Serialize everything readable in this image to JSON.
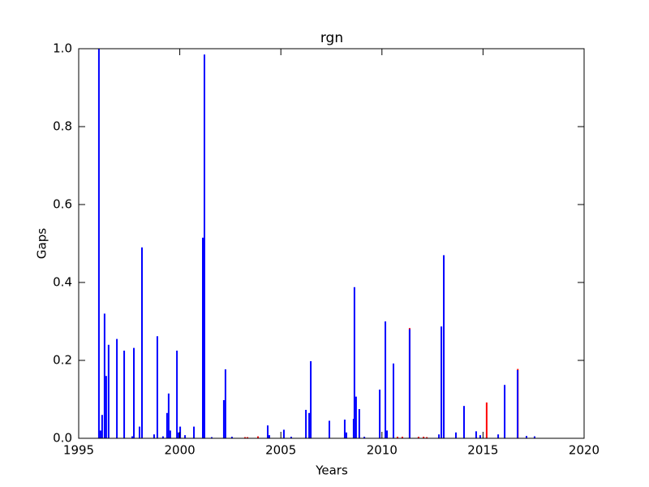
{
  "chart_data": {
    "type": "bar",
    "title": "rgn",
    "x_label": "Years",
    "y_label": "Gaps",
    "xlim": [
      1995,
      2020
    ],
    "xticks": [
      1995,
      2000,
      2005,
      2010,
      2015,
      2020
    ],
    "ylim": [
      0,
      1
    ],
    "yticks": [
      {
        "value": 0,
        "label": "0.0"
      },
      {
        "value": 0.2,
        "label": "0.2"
      },
      {
        "value": 0.4,
        "label": "0.4"
      },
      {
        "value": 0.6,
        "label": "0.6"
      },
      {
        "value": 0.8,
        "label": "0.8"
      },
      {
        "value": 1,
        "label": "1.0"
      }
    ],
    "series": [
      {
        "color": "#ff0000",
        "x": [
          2003.23,
          2003.35,
          2003.87,
          2010.77,
          2011.01,
          2011.37,
          2011.81,
          2012.06,
          2012.22,
          2015.18,
          2016.72
        ],
        "values": [
          0.003,
          0.003,
          0.005,
          0.004,
          0.004,
          0.283,
          0.004,
          0.004,
          0.003,
          0.092,
          0.178
        ]
      },
      {
        "color": "#0000ff",
        "x": [
          1996.0,
          1996.08,
          1996.16,
          1996.28,
          1996.36,
          1996.48,
          1996.89,
          1997.25,
          1997.65,
          1997.73,
          1998.01,
          1998.13,
          1998.73,
          1998.89,
          1999.17,
          1999.37,
          1999.45,
          1999.53,
          1999.86,
          1999.94,
          2000.02,
          2000.26,
          2000.7,
          2001.14,
          2001.22,
          2001.58,
          2002.18,
          2002.26,
          2002.58,
          2004.35,
          2004.43,
          2005.15,
          2005.51,
          2006.24,
          2006.4,
          2006.48,
          2007.4,
          2008.16,
          2008.24,
          2008.6,
          2008.64,
          2008.72,
          2008.88,
          2009.13,
          2009.89,
          2010.17,
          2010.25,
          2010.57,
          2011.37,
          2012.82,
          2012.94,
          2013.06,
          2013.66,
          2014.06,
          2014.66,
          2014.86,
          2015.75,
          2016.07,
          2016.71,
          2017.15,
          2017.55
        ],
        "values": [
          1.0,
          0.02,
          0.06,
          0.32,
          0.16,
          0.24,
          0.255,
          0.225,
          0.005,
          0.232,
          0.03,
          0.49,
          0.01,
          0.262,
          0.005,
          0.065,
          0.115,
          0.02,
          0.225,
          0.015,
          0.03,
          0.008,
          0.03,
          0.515,
          0.985,
          0.003,
          0.098,
          0.177,
          0.004,
          0.033,
          0.008,
          0.022,
          0.004,
          0.073,
          0.065,
          0.198,
          0.045,
          0.048,
          0.015,
          0.05,
          0.388,
          0.107,
          0.075,
          0.004,
          0.125,
          0.3,
          0.02,
          0.192,
          0.28,
          0.01,
          0.287,
          0.47,
          0.015,
          0.083,
          0.018,
          0.008,
          0.01,
          0.137,
          0.175,
          0.006,
          0.005
        ]
      }
    ]
  }
}
